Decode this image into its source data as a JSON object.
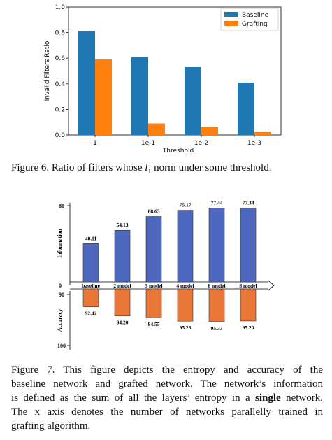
{
  "figure6": {
    "caption": {
      "prefix": "Figure 6. Ratio of filters whose ",
      "math": "l",
      "sub": "1",
      "suffix": " norm under some threshold."
    }
  },
  "figure7": {
    "caption_lines": [
      "Figure 7.   This figure depicts the entropy and accuracy of the",
      "baseline network and grafted network. The network’s information",
      "is defined as the sum of all the layers’ entropy in a ",
      "The x axis denotes the number of networks parallelly trained in",
      "grafting algorithm."
    ],
    "caption_bold": "single",
    "caption_line3_tail": " network."
  },
  "chart_data": [
    {
      "type": "bar",
      "title": "",
      "xlabel": "Threshold",
      "ylabel": "Invalid Filters Ratio",
      "categories": [
        "1",
        "1e-1",
        "1e-2",
        "1e-3"
      ],
      "series": [
        {
          "name": "Baseline",
          "color": "#1f77b4",
          "values": [
            0.81,
            0.61,
            0.53,
            0.41
          ]
        },
        {
          "name": "Grafting",
          "color": "#ff7f0e",
          "values": [
            0.59,
            0.09,
            0.06,
            0.025
          ]
        }
      ],
      "ylim": [
        0,
        1.0
      ],
      "yticks": [
        "0.0",
        "0.2",
        "0.4",
        "0.6",
        "0.8",
        "1.0"
      ],
      "legend_position": "top-right",
      "grid": false
    },
    {
      "type": "bar",
      "title": "",
      "categories": [
        "baseline",
        "2 model",
        "3 model",
        "4 model",
        "6 model",
        "8 model"
      ],
      "top": {
        "ylabel": "Information",
        "color": "#4e68c0",
        "values": [
          40.11,
          54.13,
          68.63,
          75.17,
          77.44,
          77.34
        ],
        "labels": [
          "40.11",
          "54.13",
          "68.63",
          "75.17",
          "77.44",
          "77.34"
        ],
        "yticks": [
          "80",
          "0"
        ],
        "ylim": [
          0,
          80
        ]
      },
      "bottom": {
        "ylabel": "Accuracy",
        "color": "#e97838",
        "values": [
          92.42,
          94.2,
          94.55,
          95.23,
          95.33,
          95.2
        ],
        "labels": [
          "92.42",
          "94.20",
          "94.55",
          "95.23",
          "95.33",
          "95.20"
        ],
        "yticks": [
          "90",
          "100"
        ],
        "ylim": [
          90,
          100
        ]
      }
    }
  ]
}
